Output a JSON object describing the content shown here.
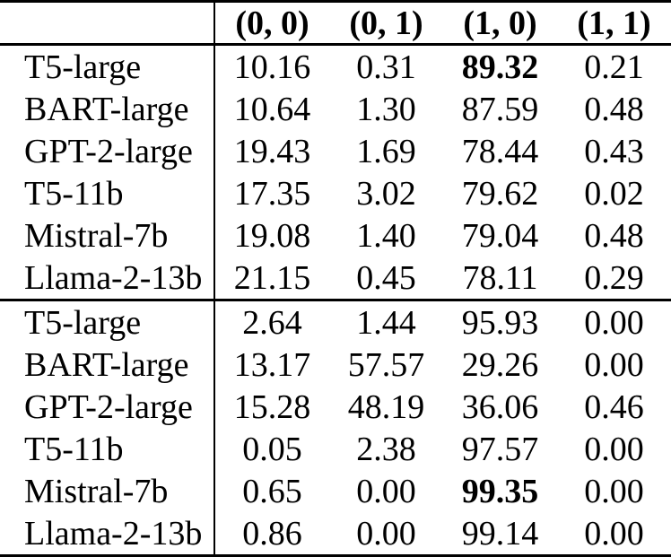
{
  "colors": {
    "text": "#000000",
    "background": "#ffffff",
    "rule": "#000000"
  },
  "table": {
    "corner_label": "",
    "header": [
      "(0, 0)",
      "(0, 1)",
      "(1, 0)",
      "(1, 1)"
    ],
    "sections": [
      {
        "rows": [
          {
            "label": "T5-large",
            "values": [
              "10.16",
              "0.31",
              "89.32",
              "0.21"
            ],
            "bold": [
              false,
              false,
              true,
              false
            ]
          },
          {
            "label": "BART-large",
            "values": [
              "10.64",
              "1.30",
              "87.59",
              "0.48"
            ],
            "bold": [
              false,
              false,
              false,
              false
            ]
          },
          {
            "label": "GPT-2-large",
            "values": [
              "19.43",
              "1.69",
              "78.44",
              "0.43"
            ],
            "bold": [
              false,
              false,
              false,
              false
            ]
          },
          {
            "label": "T5-11b",
            "values": [
              "17.35",
              "3.02",
              "79.62",
              "0.02"
            ],
            "bold": [
              false,
              false,
              false,
              false
            ]
          },
          {
            "label": "Mistral-7b",
            "values": [
              "19.08",
              "1.40",
              "79.04",
              "0.48"
            ],
            "bold": [
              false,
              false,
              false,
              false
            ]
          },
          {
            "label": "Llama-2-13b",
            "values": [
              "21.15",
              "0.45",
              "78.11",
              "0.29"
            ],
            "bold": [
              false,
              false,
              false,
              false
            ]
          }
        ]
      },
      {
        "rows": [
          {
            "label": "T5-large",
            "values": [
              "2.64",
              "1.44",
              "95.93",
              "0.00"
            ],
            "bold": [
              false,
              false,
              false,
              false
            ]
          },
          {
            "label": "BART-large",
            "values": [
              "13.17",
              "57.57",
              "29.26",
              "0.00"
            ],
            "bold": [
              false,
              false,
              false,
              false
            ]
          },
          {
            "label": "GPT-2-large",
            "values": [
              "15.28",
              "48.19",
              "36.06",
              "0.46"
            ],
            "bold": [
              false,
              false,
              false,
              false
            ]
          },
          {
            "label": "T5-11b",
            "values": [
              "0.05",
              "2.38",
              "97.57",
              "0.00"
            ],
            "bold": [
              false,
              false,
              false,
              false
            ]
          },
          {
            "label": "Mistral-7b",
            "values": [
              "0.65",
              "0.00",
              "99.35",
              "0.00"
            ],
            "bold": [
              false,
              false,
              true,
              false
            ]
          },
          {
            "label": "Llama-2-13b",
            "values": [
              "0.86",
              "0.00",
              "99.14",
              "0.00"
            ],
            "bold": [
              false,
              false,
              false,
              false
            ]
          }
        ]
      }
    ]
  }
}
